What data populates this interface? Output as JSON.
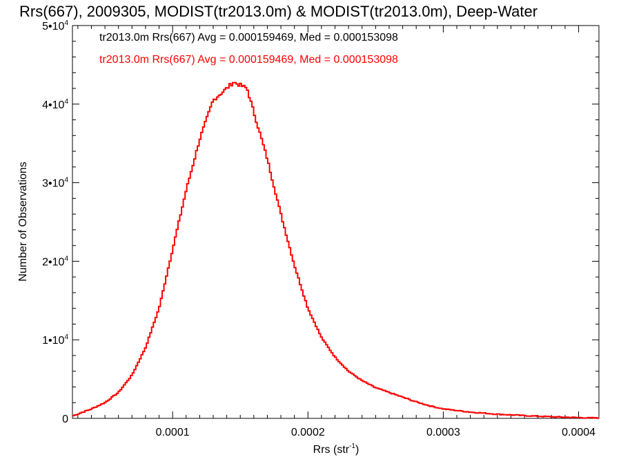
{
  "chart_data": {
    "type": "line",
    "title": "Rrs(667), 2009305, MODIST(tr2013.0m) & MODIST(tr2013.0m), Deep-Water",
    "xlabel": "Rrs (str",
    "xlabel_sup": "-1",
    "xlabel_end": ")",
    "ylabel": "Number of Observations",
    "xlim": [
      2.6e-05,
      0.000415
    ],
    "ylim": [
      0,
      50000
    ],
    "grid": false,
    "legend_position": "top-left",
    "x_ticks": [
      {
        "value": 0.0001,
        "label": "0.0001"
      },
      {
        "value": 0.0002,
        "label": "0.0002"
      },
      {
        "value": 0.0003,
        "label": "0.0003"
      },
      {
        "value": 0.0004,
        "label": "0.0004"
      }
    ],
    "y_ticks": [
      {
        "value": 0,
        "base": "0",
        "exp": ""
      },
      {
        "value": 10000,
        "base": "1•10",
        "exp": "4"
      },
      {
        "value": 20000,
        "base": "2•10",
        "exp": "4"
      },
      {
        "value": 30000,
        "base": "3•10",
        "exp": "4"
      },
      {
        "value": 40000,
        "base": "4•10",
        "exp": "4"
      },
      {
        "value": 50000,
        "base": "5•10",
        "exp": "4"
      }
    ],
    "annotations": [
      {
        "text": "tr2013.0m Rrs(667) Avg = 0.000159469, Med = 0.000153098",
        "color": "#000000"
      },
      {
        "text": "tr2013.0m Rrs(667) Avg = 0.000159469, Med = 0.000153098",
        "color": "#ff0000"
      }
    ],
    "series": [
      {
        "color": "#ff0000",
        "x": [
          2.6e-05,
          4e-05,
          5e-05,
          6e-05,
          7e-05,
          8e-05,
          9e-05,
          0.0001,
          0.00011,
          0.00012,
          0.00013,
          0.00014,
          0.000145,
          0.00015,
          0.000155,
          0.00016,
          0.00017,
          0.00018,
          0.00019,
          0.0002,
          0.00021,
          0.00022,
          0.00023,
          0.00024,
          0.00025,
          0.00026,
          0.00027,
          0.00028,
          0.00029,
          0.0003,
          0.00032,
          0.00034,
          0.00036,
          0.00038,
          0.0004,
          0.000415
        ],
        "y": [
          300,
          1200,
          2000,
          3300,
          5500,
          9000,
          14000,
          21500,
          29000,
          35500,
          40500,
          42000,
          42800,
          42400,
          42000,
          39000,
          33000,
          26000,
          19500,
          14000,
          10300,
          7800,
          6000,
          4800,
          3900,
          3300,
          2700,
          2100,
          1600,
          1200,
          800,
          530,
          350,
          200,
          100,
          30
        ]
      }
    ]
  }
}
